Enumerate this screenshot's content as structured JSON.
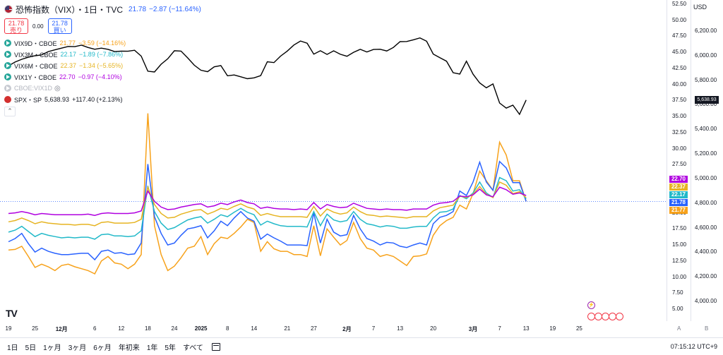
{
  "header": {
    "title": "恐怖指数（VIX）・1日・TVC",
    "price": "21.78",
    "change": "−2.87 (−11.64%)",
    "sell_price": "21.78",
    "sell_label": "売り",
    "spread": "0.00",
    "buy_price": "21.78",
    "buy_label": "買い"
  },
  "legend": [
    {
      "name": "VIX9D・CBOE",
      "value": "21.77",
      "change": "−3.59 (−14.16%)",
      "color": "#f7a21b"
    },
    {
      "name": "VIX3M・CBOE",
      "value": "22.17",
      "change": "−1.89 (−7.86%)",
      "color": "#22b9c9"
    },
    {
      "name": "VIX6M・CBOE",
      "value": "22.37",
      "change": "−1.34 (−5.65%)",
      "color": "#e6b422"
    },
    {
      "name": "VIX1Y・CBOE",
      "value": "22.70",
      "change": "−0.97 (−4.10%)",
      "color": "#b000e0"
    }
  ],
  "hidden_series": "CBOE:VIX1D",
  "spx": {
    "name": "SPX・SP",
    "value": "5,638.93",
    "change": "+117.40 (+2.13%)",
    "badge": "5,638.93"
  },
  "currency": "USD",
  "right_badges": [
    {
      "text": "22.70",
      "color": "#b000e0"
    },
    {
      "text": "22.37",
      "color": "#e6b422"
    },
    {
      "text": "22.17",
      "color": "#22b9c9"
    },
    {
      "text": "21.78",
      "color": "#2962ff"
    },
    {
      "text": "21.77",
      "color": "#f7a21b"
    }
  ],
  "bottom": {
    "ranges": [
      "1日",
      "5日",
      "1ヶ月",
      "3ヶ月",
      "6ヶ月",
      "年初来",
      "1年",
      "5年",
      "すべて"
    ],
    "time": "07:15:12 UTC+9",
    "scale_a": "A",
    "scale_b": "B"
  },
  "chart_data": {
    "type": "line",
    "vix_axis": {
      "ticks": [
        "52.50",
        "50.00",
        "47.50",
        "45.00",
        "42.50",
        "40.00",
        "37.50",
        "35.00",
        "32.50",
        "30.00",
        "27.50",
        "25.00",
        "22.50",
        "20.00",
        "17.50",
        "15.00",
        "12.50",
        "10.00",
        "7.50",
        "5.00"
      ],
      "range": [
        5,
        52.5
      ]
    },
    "spx_axis": {
      "ticks": [
        "6,200.00",
        "6,000.00",
        "5,800.00",
        "5,600.00",
        "5,400.00",
        "5,200.00",
        "5,000.00",
        "4,800.00",
        "4,600.00",
        "4,400.00",
        "4,200.00",
        "4,000.00"
      ],
      "range": [
        4000,
        6200
      ]
    },
    "x_ticks": [
      {
        "label": "19",
        "idx": 0
      },
      {
        "label": "25",
        "idx": 4
      },
      {
        "label": "12月",
        "idx": 8,
        "bold": true
      },
      {
        "label": "6",
        "idx": 13
      },
      {
        "label": "12",
        "idx": 17
      },
      {
        "label": "18",
        "idx": 21
      },
      {
        "label": "24",
        "idx": 25
      },
      {
        "label": "2025",
        "idx": 29,
        "bold": true
      },
      {
        "label": "8",
        "idx": 33
      },
      {
        "label": "14",
        "idx": 37
      },
      {
        "label": "21",
        "idx": 42
      },
      {
        "label": "27",
        "idx": 46
      },
      {
        "label": "2月",
        "idx": 51,
        "bold": true
      },
      {
        "label": "7",
        "idx": 55
      },
      {
        "label": "13",
        "idx": 59
      },
      {
        "label": "20",
        "idx": 64
      },
      {
        "label": "3月",
        "idx": 70,
        "bold": true
      },
      {
        "label": "7",
        "idx": 74
      },
      {
        "label": "13",
        "idx": 78
      },
      {
        "label": "19",
        "idx": 82
      },
      {
        "label": "25",
        "idx": 86
      }
    ],
    "series": [
      {
        "name": "VIX9D",
        "color": "#f7a21b",
        "values": [
          14.2,
          14.3,
          14.8,
          13.2,
          11.5,
          12.0,
          11.6,
          11.0,
          11.8,
          12.0,
          11.6,
          11.3,
          11.0,
          10.5,
          12.5,
          13.2,
          12.2,
          12.0,
          11.3,
          12.0,
          13.5,
          35.5,
          18.0,
          13.5,
          11.0,
          11.7,
          13.0,
          14.5,
          14.8,
          16.3,
          13.5,
          15.2,
          16.2,
          16.0,
          16.8,
          17.8,
          19.0,
          18.5,
          14.0,
          15.5,
          14.4,
          14.0,
          14.0,
          13.5,
          13.5,
          13.2,
          18.0,
          13.3,
          17.5,
          16.2,
          15.0,
          15.7,
          18.5,
          16.0,
          14.5,
          14.2,
          13.2,
          13.5,
          13.2,
          12.5,
          11.8,
          13.2,
          13.3,
          13.6,
          16.5,
          18.0,
          18.8,
          19.3,
          21.2,
          20.6,
          23.0,
          26.5,
          25.0,
          23.5,
          31.0,
          29.0,
          25.0,
          25.0,
          21.77
        ]
      },
      {
        "name": "VIX",
        "color": "#2962ff",
        "values": [
          15.5,
          16.0,
          16.8,
          15.2,
          13.9,
          14.5,
          14.0,
          13.7,
          13.5,
          13.5,
          13.6,
          13.7,
          13.7,
          12.7,
          14.0,
          14.2,
          13.7,
          13.8,
          13.5,
          13.6,
          15.3,
          27.6,
          19.4,
          16.8,
          15.0,
          15.3,
          16.5,
          17.5,
          17.7,
          18.0,
          16.1,
          17.2,
          18.7,
          18.0,
          19.2,
          20.2,
          19.2,
          18.7,
          15.9,
          16.7,
          16.1,
          15.6,
          15.0,
          15.0,
          15.0,
          14.9,
          20.0,
          15.3,
          19.0,
          17.0,
          16.4,
          16.6,
          19.6,
          17.5,
          16.0,
          15.6,
          15.0,
          15.4,
          15.3,
          14.8,
          14.6,
          15.0,
          15.3,
          15.0,
          18.3,
          19.3,
          19.6,
          20.2,
          23.4,
          22.7,
          24.8,
          27.9,
          24.8,
          23.5,
          28.0,
          27.0,
          24.7,
          24.7,
          21.78
        ]
      },
      {
        "name": "VIX3M",
        "color": "#22b9c9",
        "values": [
          17.0,
          17.3,
          17.9,
          17.1,
          16.3,
          16.8,
          16.5,
          16.3,
          16.1,
          16.2,
          16.1,
          16.2,
          16.2,
          15.9,
          16.6,
          16.7,
          16.4,
          16.4,
          16.3,
          16.4,
          17.2,
          24.2,
          20.2,
          18.4,
          17.4,
          17.7,
          18.3,
          18.9,
          19.2,
          19.4,
          18.4,
          19.0,
          19.7,
          19.4,
          20.1,
          20.7,
          20.1,
          19.7,
          18.1,
          18.7,
          18.3,
          18.0,
          17.9,
          17.9,
          17.9,
          17.8,
          20.2,
          18.0,
          19.8,
          18.9,
          18.6,
          18.8,
          20.2,
          19.0,
          18.3,
          18.1,
          17.8,
          18.0,
          17.9,
          17.6,
          17.6,
          17.8,
          17.9,
          17.9,
          19.2,
          20.1,
          20.2,
          20.6,
          22.7,
          22.2,
          23.1,
          24.8,
          23.1,
          22.4,
          25.5,
          25.0,
          23.4,
          23.6,
          22.17
        ]
      },
      {
        "name": "VIX6M",
        "color": "#e6b422",
        "values": [
          18.6,
          18.8,
          19.2,
          18.8,
          18.3,
          18.6,
          18.4,
          18.3,
          18.2,
          18.2,
          18.1,
          18.2,
          18.2,
          18.0,
          18.5,
          18.6,
          18.4,
          18.4,
          18.4,
          18.5,
          19.0,
          24.0,
          21.3,
          19.9,
          19.2,
          19.3,
          19.8,
          20.1,
          20.4,
          20.5,
          19.8,
          20.2,
          20.7,
          20.5,
          21.0,
          21.4,
          20.9,
          20.6,
          19.6,
          19.9,
          19.6,
          19.4,
          19.4,
          19.4,
          19.4,
          19.3,
          21.0,
          19.5,
          20.6,
          20.1,
          19.8,
          20.0,
          20.9,
          20.2,
          19.7,
          19.6,
          19.4,
          19.5,
          19.4,
          19.3,
          19.2,
          19.4,
          19.4,
          19.4,
          20.3,
          20.8,
          21.0,
          21.2,
          22.6,
          22.4,
          22.9,
          24.1,
          22.9,
          22.4,
          24.8,
          24.3,
          23.0,
          23.3,
          22.37
        ]
      },
      {
        "name": "VIX1Y",
        "color": "#b000e0",
        "values": [
          19.9,
          20.0,
          20.2,
          20.0,
          19.7,
          19.9,
          19.8,
          19.7,
          19.7,
          19.7,
          19.7,
          19.7,
          19.8,
          19.6,
          19.9,
          20.0,
          19.9,
          19.9,
          19.9,
          20.0,
          20.3,
          23.4,
          21.8,
          20.9,
          20.5,
          20.6,
          20.9,
          21.1,
          21.3,
          21.4,
          20.9,
          21.1,
          21.5,
          21.3,
          21.7,
          22.0,
          21.6,
          21.4,
          20.7,
          20.9,
          20.7,
          20.6,
          20.6,
          20.5,
          20.6,
          20.5,
          21.6,
          20.6,
          21.3,
          21.0,
          20.8,
          20.9,
          21.5,
          21.1,
          20.7,
          20.6,
          20.5,
          20.6,
          20.5,
          20.5,
          20.4,
          20.6,
          20.6,
          20.6,
          21.2,
          21.5,
          21.6,
          21.8,
          22.6,
          22.5,
          22.8,
          23.7,
          22.8,
          22.5,
          24.0,
          23.6,
          22.9,
          23.1,
          22.7
        ]
      },
      {
        "name": "SPX",
        "color": "#000000",
        "axis": "spx",
        "values": [
          5917,
          5948,
          5970,
          5987,
          5999,
          6006,
          6033,
          6047,
          6061,
          6075,
          6073,
          6085,
          6066,
          6052,
          6061,
          6051,
          6033,
          6037,
          6036,
          6044,
          5996,
          5873,
          5867,
          5930,
          5974,
          6040,
          6037,
          5982,
          5922,
          5881,
          5869,
          5909,
          5919,
          5836,
          5843,
          5828,
          5812,
          5819,
          5837,
          5950,
          5943,
          5996,
          6037,
          6086,
          6119,
          6101,
          6012,
          6040,
          6010,
          6039,
          6011,
          5995,
          6027,
          6051,
          6030,
          6050,
          6052,
          6038,
          6067,
          6114,
          6115,
          6129,
          6144,
          6117,
          6013,
          5983,
          5955,
          5861,
          5850,
          5955,
          5849,
          5778,
          5738,
          5770,
          5614,
          5573,
          5597,
          5522,
          5639
        ]
      }
    ]
  }
}
